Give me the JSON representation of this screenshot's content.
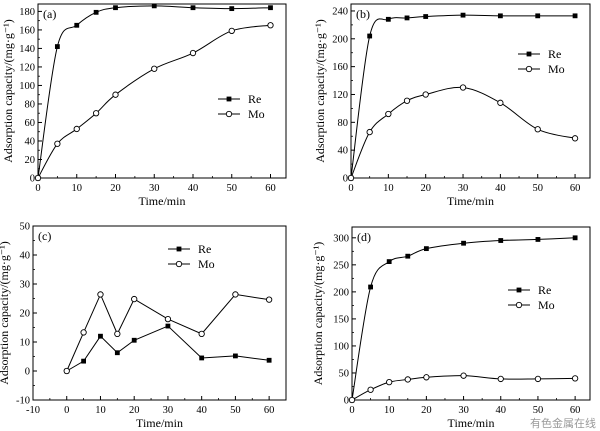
{
  "watermark": "有色金属在线",
  "chart_data": [
    {
      "type": "line",
      "panel_label": "(a)",
      "xlabel": "Time/min",
      "ylabel": "Adsorption capacity/(mg·g⁻¹)",
      "xlim": [
        0,
        64
      ],
      "ylim": [
        0,
        188
      ],
      "xticks": [
        0,
        10,
        20,
        30,
        40,
        50,
        60
      ],
      "yticks": [
        0,
        20,
        40,
        60,
        80,
        100,
        120,
        140,
        160,
        180
      ],
      "legend": "right",
      "curve": "smooth",
      "series": [
        {
          "name": "Re",
          "marker": "filled-square",
          "x": [
            0,
            5,
            10,
            15,
            20,
            30,
            40,
            50,
            60
          ],
          "y": [
            0,
            142,
            165,
            179,
            184,
            186,
            184,
            183,
            184
          ]
        },
        {
          "name": "Mo",
          "marker": "open-circle",
          "x": [
            0,
            5,
            10,
            15,
            20,
            30,
            40,
            50,
            60
          ],
          "y": [
            0,
            37,
            53,
            70,
            90,
            118,
            135,
            159,
            165
          ]
        }
      ]
    },
    {
      "type": "line",
      "panel_label": "(b)",
      "xlabel": "Time/min",
      "ylabel": "Adsorption capacity/(mg·g⁻¹)",
      "xlim": [
        0,
        64
      ],
      "ylim": [
        0,
        250
      ],
      "xticks": [
        0,
        10,
        20,
        30,
        40,
        50,
        60
      ],
      "yticks": [
        0,
        40,
        80,
        120,
        160,
        200,
        240
      ],
      "legend": "right",
      "curve": "smooth",
      "series": [
        {
          "name": "Re",
          "marker": "filled-square",
          "x": [
            0,
            5,
            10,
            15,
            20,
            30,
            40,
            50,
            60
          ],
          "y": [
            0,
            204,
            228,
            230,
            232,
            234,
            233,
            233,
            233
          ]
        },
        {
          "name": "Mo",
          "marker": "open-circle",
          "x": [
            0,
            5,
            10,
            15,
            20,
            30,
            40,
            50,
            60
          ],
          "y": [
            0,
            66,
            92,
            111,
            120,
            130,
            108,
            70,
            57
          ]
        }
      ]
    },
    {
      "type": "line",
      "panel_label": "(c)",
      "xlabel": "Time/min",
      "ylabel": "Adsorption capacity/(mg·g⁻¹)",
      "xlim": [
        -10,
        65
      ],
      "ylim": [
        -10,
        50
      ],
      "xticks": [
        -10,
        0,
        10,
        20,
        30,
        40,
        50,
        60
      ],
      "yticks": [
        -10,
        0,
        10,
        20,
        30,
        40,
        50
      ],
      "legend": "upper-center",
      "curve": "straight",
      "series": [
        {
          "name": "Re",
          "marker": "filled-square",
          "x": [
            0,
            5,
            10,
            15,
            20,
            30,
            40,
            50,
            60
          ],
          "y": [
            0,
            3.4,
            12,
            6.3,
            10.6,
            15.5,
            4.5,
            5.2,
            3.7
          ]
        },
        {
          "name": "Mo",
          "marker": "open-circle",
          "x": [
            0,
            5,
            10,
            15,
            20,
            30,
            40,
            50,
            60
          ],
          "y": [
            0,
            13.3,
            26.4,
            12.8,
            24.8,
            17.9,
            12.8,
            26.4,
            24.6
          ]
        }
      ]
    },
    {
      "type": "line",
      "panel_label": "(d)",
      "xlabel": "Time/min",
      "ylabel": "Adsorption capacity/(mg·g⁻¹)",
      "xlim": [
        0,
        64
      ],
      "ylim": [
        0,
        320
      ],
      "xticks": [
        0,
        10,
        20,
        30,
        40,
        50,
        60
      ],
      "yticks": [
        0,
        50,
        100,
        150,
        200,
        250,
        300
      ],
      "legend": "right",
      "curve": "smooth",
      "series": [
        {
          "name": "Re",
          "marker": "filled-square",
          "x": [
            0,
            5,
            10,
            15,
            20,
            30,
            40,
            50,
            60
          ],
          "y": [
            0,
            209,
            256,
            266,
            280,
            290,
            295,
            297,
            300
          ]
        },
        {
          "name": "Mo",
          "marker": "open-circle",
          "x": [
            0,
            5,
            10,
            15,
            20,
            30,
            40,
            50,
            60
          ],
          "y": [
            0,
            19,
            33,
            38,
            42,
            45,
            39,
            39,
            40
          ]
        }
      ]
    }
  ]
}
